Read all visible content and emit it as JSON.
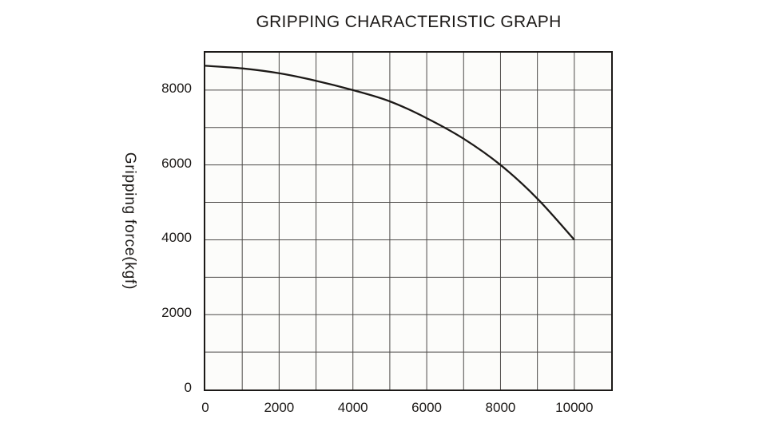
{
  "chart_data": {
    "type": "line",
    "title": "GRIPPING CHARACTERISTIC GRAPH",
    "xlabel": "",
    "ylabel": "Gripping force(kgf)",
    "x": [
      0,
      1000,
      2000,
      3000,
      4000,
      5000,
      6000,
      7000,
      8000,
      9000,
      10000
    ],
    "y": [
      8650,
      8580,
      8450,
      8250,
      8000,
      7700,
      7250,
      6700,
      6000,
      5100,
      4000
    ],
    "xlim": [
      0,
      11000
    ],
    "ylim": [
      0,
      9000
    ],
    "x_ticks": [
      0,
      2000,
      4000,
      6000,
      8000,
      10000
    ],
    "y_ticks": [
      0,
      2000,
      4000,
      6000,
      8000
    ],
    "grid": true,
    "grid_step_x": 1000,
    "grid_step_y": 1000,
    "legend": "none",
    "colors": {
      "line": "#1c1917",
      "grid": "#4d4a48",
      "border": "#1c1917",
      "text": "#1c1917",
      "plot_background": "#fcfcfa"
    }
  }
}
